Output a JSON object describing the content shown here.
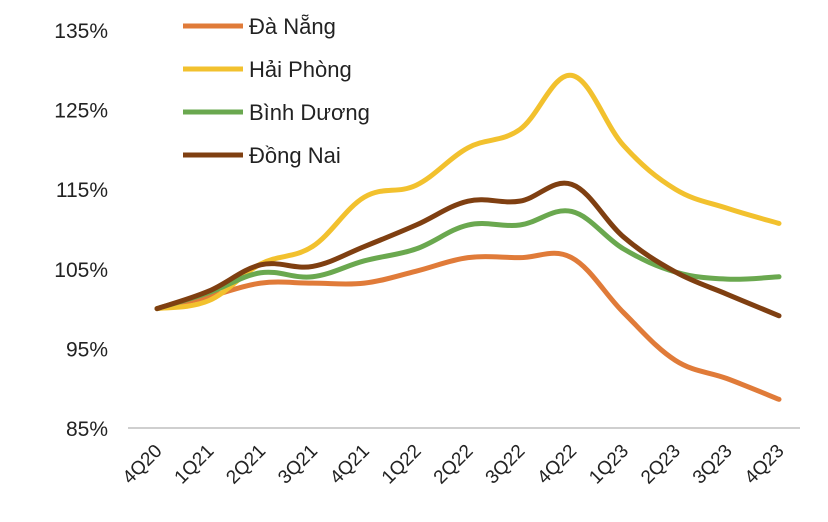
{
  "chart_data": {
    "type": "line",
    "title": "",
    "xlabel": "",
    "ylabel": "",
    "categories": [
      "4Q20",
      "1Q21",
      "2Q21",
      "3Q21",
      "4Q21",
      "1Q22",
      "2Q22",
      "3Q22",
      "4Q22",
      "1Q23",
      "2Q23",
      "3Q23",
      "4Q23"
    ],
    "y_ticks": [
      "135%",
      "125%",
      "115%",
      "105%",
      "95%",
      "85%"
    ],
    "ylim": [
      85,
      135
    ],
    "unit": "%",
    "grid": false,
    "legend_position": "top-left",
    "series": [
      {
        "name": "Đà Nẵng",
        "color": "#e07b39",
        "values": [
          100,
          101.5,
          103.2,
          103.2,
          103.2,
          104.7,
          106.4,
          106.4,
          106.4,
          99.5,
          93.5,
          91.2,
          88.6
        ]
      },
      {
        "name": "Hải Phòng",
        "color": "#f2c12e",
        "values": [
          100,
          101.0,
          105.6,
          107.8,
          114.0,
          115.5,
          120.2,
          122.5,
          129.3,
          120.5,
          115.0,
          112.6,
          110.7
        ]
      },
      {
        "name": "Bình Dương",
        "color": "#6aa84f",
        "values": [
          100,
          102.0,
          104.5,
          104.0,
          106.0,
          107.5,
          110.5,
          110.5,
          112.2,
          107.5,
          104.6,
          103.7,
          104.0
        ]
      },
      {
        "name": "Đồng Nai",
        "color": "#7f3f11",
        "values": [
          100,
          102.2,
          105.5,
          105.3,
          107.8,
          110.5,
          113.5,
          113.5,
          115.6,
          109.0,
          104.6,
          101.8,
          99.1
        ]
      }
    ]
  }
}
